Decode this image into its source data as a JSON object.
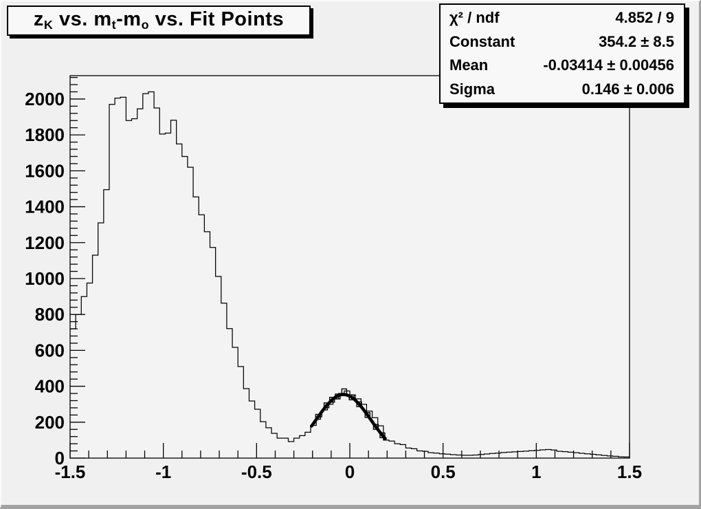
{
  "title": {
    "segments": [
      {
        "text": "z"
      },
      {
        "text": "K",
        "sub": true
      },
      {
        "text": " vs. m"
      },
      {
        "text": "t",
        "sub": true
      },
      {
        "text": "-m"
      },
      {
        "text": "o",
        "sub": true
      },
      {
        "text": " vs. Fit Points"
      }
    ]
  },
  "stats_box": {
    "rows": [
      {
        "label": "χ² / ndf",
        "value": "4.852 / 9"
      },
      {
        "label": "Constant",
        "value": "354.2 ± 8.5"
      },
      {
        "label": "Mean",
        "value": "-0.03414 ± 0.00456"
      },
      {
        "label": "Sigma",
        "value": "0.146 ± 0.006"
      }
    ]
  },
  "chart_data": {
    "type": "bar",
    "subtype": "histogram-step",
    "title": "z_K vs. m_t-m_o vs. Fit Points",
    "xlabel": "",
    "ylabel": "",
    "x_range": [
      -1.5,
      1.5
    ],
    "y_range": [
      0,
      2130
    ],
    "grid": false,
    "bin_start": -1.5,
    "bin_width": 0.03,
    "bins": [
      720,
      800,
      900,
      975,
      1130,
      1310,
      1495,
      1970,
      2005,
      2010,
      1880,
      1890,
      1945,
      2030,
      2040,
      1950,
      1805,
      1810,
      1882,
      1750,
      1680,
      1620,
      1455,
      1355,
      1261,
      1173,
      1012,
      863,
      721,
      617,
      510,
      387,
      318,
      272,
      203,
      169,
      138,
      111,
      111,
      92,
      111,
      125,
      144,
      182,
      230,
      268,
      300,
      330,
      360,
      374,
      352,
      330,
      300,
      262,
      225,
      180,
      100,
      95,
      80,
      75,
      56,
      52,
      40,
      38,
      30,
      28,
      24,
      22,
      19,
      17,
      16,
      16,
      17,
      20,
      23,
      26,
      28,
      31,
      33,
      35,
      37,
      39,
      41,
      43,
      46,
      48,
      45,
      38,
      36,
      33,
      30,
      27,
      24,
      21,
      18,
      15,
      12,
      10,
      7,
      6
    ],
    "x_ticks": [
      -1.5,
      -1,
      -0.5,
      0,
      0.5,
      1,
      1.5
    ],
    "x_tick_labels": [
      "-1.5",
      "-1",
      "-0.5",
      "0",
      "0.5",
      "1",
      "1.5"
    ],
    "x_minor_step": 0.1,
    "y_ticks": [
      0,
      200,
      400,
      600,
      800,
      1000,
      1200,
      1400,
      1600,
      1800,
      2000
    ],
    "y_tick_labels": [
      "0",
      "200",
      "400",
      "600",
      "800",
      "1000",
      "1200",
      "1400",
      "1600",
      "1800",
      "2000"
    ],
    "y_minor_step": 40,
    "fit": {
      "constant": 354.2,
      "mean": -0.03414,
      "sigma": 0.146,
      "range": [
        -0.205,
        0.19
      ]
    },
    "fit_points": [
      {
        "x": -0.17,
        "y": 230
      },
      {
        "x": -0.125,
        "y": 294
      },
      {
        "x": -0.095,
        "y": 325
      },
      {
        "x": -0.065,
        "y": 343
      },
      {
        "x": -0.03,
        "y": 372
      },
      {
        "x": 0.01,
        "y": 338
      },
      {
        "x": 0.05,
        "y": 300
      },
      {
        "x": 0.095,
        "y": 240
      },
      {
        "x": 0.14,
        "y": 174
      },
      {
        "x": 0.175,
        "y": 127
      }
    ],
    "colors": {
      "line": "#000000",
      "fit_curve": "#000000",
      "marker": "#000000",
      "canvas_bg": "#f0f0f0",
      "frame_bg": "#f3f3f3",
      "box_bg": "#f8f8f8"
    }
  }
}
